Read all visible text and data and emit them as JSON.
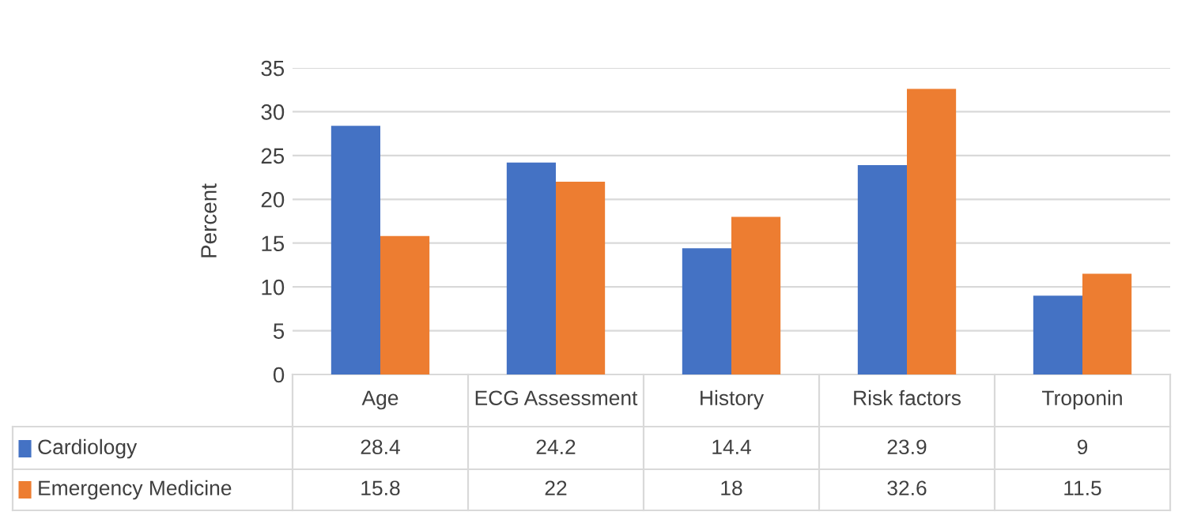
{
  "chart_data": {
    "type": "bar",
    "ylabel": "Percent",
    "categories": [
      "Age",
      "ECG Assessment",
      "History",
      "Risk factors",
      "Troponin"
    ],
    "series": [
      {
        "name": "Cardiology",
        "color": "#4472c4",
        "values": [
          28.4,
          24.2,
          14.4,
          23.9,
          9
        ]
      },
      {
        "name": "Emergency Medicine",
        "color": "#ed7d31",
        "values": [
          15.8,
          22,
          18,
          32.6,
          11.5
        ]
      }
    ],
    "ylim": [
      0,
      35
    ],
    "yticks": [
      0,
      5,
      10,
      15,
      20,
      25,
      30,
      35
    ],
    "grid": "y",
    "legend": "bottom",
    "data_labels": true
  }
}
